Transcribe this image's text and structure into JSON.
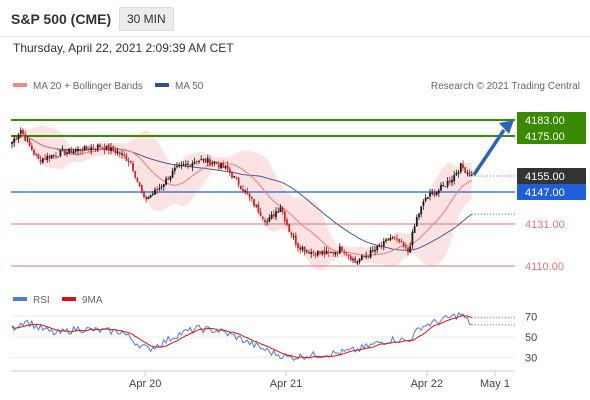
{
  "header": {
    "symbol": "S&P 500 (CME)",
    "timeframe": "30 MIN",
    "datetime": "Thursday, April 22, 2021 2:09:39 AM CET"
  },
  "legend": {
    "ma20_bb": "MA 20 + Bollinger Bands",
    "ma50": "MA 50",
    "copyright": "Research © 2021 Trading Central",
    "rsi": "RSI",
    "ma9": "9MA"
  },
  "colors": {
    "up": "#1a1a1a",
    "down": "#cc2222",
    "bollinger_fill": "#fbdcdc",
    "ma20": "#ea7d7d",
    "ma50": "#4a5a95",
    "resistance": "#3a8a00",
    "target_arrow": "#2b63b8",
    "pivot": "#1f5fdc",
    "support": "#e27575",
    "last_price_tag": "#333333",
    "rsi": "#4d7bd6",
    "rsi_ma": "#dd1111"
  },
  "chart_data": [
    {
      "type": "candlestick",
      "title": "S&P 500 (CME)",
      "timeframe": "30 MIN",
      "ylim": [
        4098,
        4198
      ],
      "x_ticks": [
        "Apr 20",
        "Apr 21",
        "Apr 22",
        "May 1"
      ],
      "price_labels": [
        "4183.00",
        "4175.00",
        "4155.00",
        "4147.00",
        "4131.00",
        "4110.00"
      ],
      "levels": [
        {
          "label": "4183.00",
          "value": 4183,
          "kind": "resistance"
        },
        {
          "label": "4175.00",
          "value": 4175,
          "kind": "resistance"
        },
        {
          "label": "4147.00",
          "value": 4147,
          "kind": "pivot"
        },
        {
          "label": "4131.00",
          "value": 4131,
          "kind": "support"
        },
        {
          "label": "4110.00",
          "value": 4110,
          "kind": "support"
        }
      ],
      "last_price": {
        "label": "4155.00",
        "value": 4155
      },
      "target": {
        "from": 4155,
        "to": 4183
      },
      "close_anchors": [
        [
          0,
          4172
        ],
        [
          4,
          4178
        ],
        [
          8,
          4170
        ],
        [
          12,
          4163
        ],
        [
          20,
          4166
        ],
        [
          30,
          4168
        ],
        [
          40,
          4170
        ],
        [
          48,
          4167
        ],
        [
          54,
          4162
        ],
        [
          60,
          4143
        ],
        [
          66,
          4148
        ],
        [
          74,
          4158
        ],
        [
          84,
          4163
        ],
        [
          92,
          4162
        ],
        [
          98,
          4158
        ],
        [
          104,
          4150
        ],
        [
          110,
          4141
        ],
        [
          116,
          4132
        ],
        [
          122,
          4140
        ],
        [
          126,
          4128
        ],
        [
          130,
          4120
        ],
        [
          136,
          4117
        ],
        [
          144,
          4116
        ],
        [
          150,
          4119
        ],
        [
          156,
          4112
        ],
        [
          162,
          4116
        ],
        [
          168,
          4120
        ],
        [
          172,
          4124
        ],
        [
          176,
          4122
        ],
        [
          180,
          4117
        ],
        [
          184,
          4134
        ],
        [
          188,
          4144
        ],
        [
          194,
          4148
        ],
        [
          200,
          4154
        ],
        [
          204,
          4160
        ],
        [
          209,
          4155
        ]
      ],
      "series": [
        {
          "name": "MA 20 + Bollinger Bands"
        },
        {
          "name": "MA 50"
        }
      ]
    },
    {
      "type": "line",
      "title": "RSI",
      "ylim": [
        20,
        78
      ],
      "y_ticks": [
        30,
        50,
        70
      ],
      "y_tick_labels": [
        "30",
        "50",
        "70"
      ],
      "rsi_anchors": [
        [
          0,
          58
        ],
        [
          6,
          66
        ],
        [
          12,
          59
        ],
        [
          20,
          53
        ],
        [
          30,
          58
        ],
        [
          40,
          56
        ],
        [
          50,
          55
        ],
        [
          56,
          45
        ],
        [
          62,
          38
        ],
        [
          68,
          44
        ],
        [
          76,
          53
        ],
        [
          84,
          58
        ],
        [
          94,
          56
        ],
        [
          102,
          50
        ],
        [
          110,
          42
        ],
        [
          118,
          35
        ],
        [
          126,
          30
        ],
        [
          134,
          32
        ],
        [
          142,
          33
        ],
        [
          150,
          35
        ],
        [
          158,
          38
        ],
        [
          166,
          44
        ],
        [
          174,
          48
        ],
        [
          180,
          46
        ],
        [
          186,
          60
        ],
        [
          192,
          64
        ],
        [
          198,
          68
        ],
        [
          204,
          72
        ],
        [
          209,
          62
        ]
      ],
      "series": [
        {
          "name": "RSI"
        },
        {
          "name": "9MA"
        }
      ]
    }
  ]
}
